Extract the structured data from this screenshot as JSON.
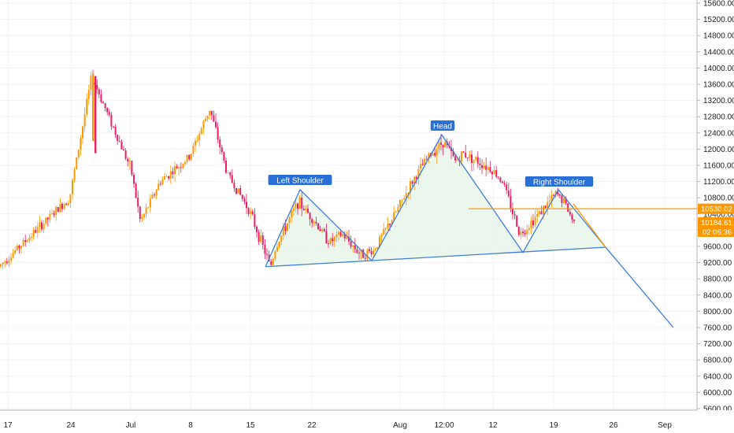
{
  "chart_data": {
    "type": "candlestick",
    "title": "",
    "y_ticks": [
      5600,
      6000,
      6400,
      6800,
      7200,
      7600,
      8000,
      8400,
      8800,
      9200,
      9600,
      10000,
      10400,
      10800,
      11200,
      11600,
      12000,
      12400,
      12800,
      13200,
      13600,
      14000,
      14400,
      14800,
      15200,
      15600
    ],
    "y_tick_labels": [
      "5600.00",
      "6000.00",
      "6400.00",
      "6800.00",
      "7200.00",
      "7600.00",
      "8000.00",
      "8400.00",
      "8800.00",
      "9200.00",
      "9600.00",
      "10000.00",
      "10400.00",
      "10800.00",
      "11200.00",
      "11600.00",
      "12000.00",
      "12400.00",
      "12800.00",
      "13200.00",
      "13600.00",
      "14000.00",
      "14400.00",
      "14800.00",
      "15200.00",
      "15600.00"
    ],
    "x_tick_labels": [
      "17",
      "24",
      "Jul",
      "8",
      "15",
      "22",
      "Aug",
      "12:00",
      "12",
      "19",
      "26",
      "Sep"
    ],
    "ylim": [
      5350,
      15800
    ],
    "price_series": [
      [
        "17",
        9100
      ],
      [
        "24",
        10800
      ],
      [
        "26",
        13800
      ],
      [
        "Jul",
        11500
      ],
      [
        "3",
        10200
      ],
      [
        "5",
        11200
      ],
      [
        "8",
        11800
      ],
      [
        "10",
        13000
      ],
      [
        "12",
        11400
      ],
      [
        "15",
        10500
      ],
      [
        "16",
        9100
      ],
      [
        "17",
        9600
      ],
      [
        "20",
        10700
      ],
      [
        "22",
        10300
      ],
      [
        "24",
        9700
      ],
      [
        "26",
        9900
      ],
      [
        "29",
        9400
      ],
      [
        "30",
        9500
      ],
      [
        "Aug",
        10500
      ],
      [
        "4",
        11200
      ],
      [
        "6",
        11800
      ],
      [
        "12:00",
        12200
      ],
      [
        "9",
        11700
      ],
      [
        "10",
        11900
      ],
      [
        "12",
        11500
      ],
      [
        "14",
        11200
      ],
      [
        "15",
        10300
      ],
      [
        "16",
        9900
      ],
      [
        "18",
        10500
      ],
      [
        "19",
        10900
      ],
      [
        "20",
        10700
      ],
      [
        "21",
        10184.61
      ]
    ],
    "annotations": [
      {
        "text": "Left Shoulder"
      },
      {
        "text": "Head"
      },
      {
        "text": "Right Shoulder"
      }
    ],
    "pattern_points": [
      {
        "name": "neckline-start",
        "x": "16",
        "y": 9100
      },
      {
        "name": "left-shoulder-top",
        "x": "20",
        "y": 11000
      },
      {
        "name": "neckline-mid",
        "x": "29",
        "y": 9250
      },
      {
        "name": "head-top",
        "x": "12:00",
        "y": 12350
      },
      {
        "name": "neckline-right",
        "x": "16",
        "y": 9450
      },
      {
        "name": "right-shoulder-top",
        "x": "19",
        "y": 11000
      },
      {
        "name": "neckline-end",
        "x": "24",
        "y": 9580
      },
      {
        "name": "target",
        "x": "Sep",
        "y": 7600
      }
    ],
    "horizontal_level": 10530.02,
    "price_labels": {
      "level": "10530.02",
      "last": "10184.61",
      "countdown": "02:06:36"
    },
    "colors": {
      "up": "#ff9800",
      "down": "#e91e63",
      "pattern_line": "#3f7ed6",
      "pattern_fill": "#e8f5e9",
      "level_line": "#ff9800",
      "last_tag": "#ff9800"
    }
  }
}
